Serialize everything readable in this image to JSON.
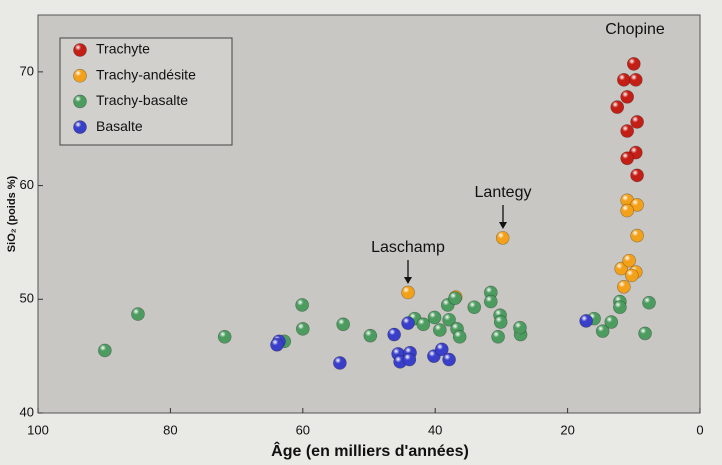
{
  "chart_data": {
    "type": "scatter",
    "x_label": "Âge (en milliers d'années)",
    "y_label": "SiO₂ (poids %)",
    "xlim": [
      100,
      0
    ],
    "ylim": [
      40,
      75
    ],
    "xticks": [
      100,
      80,
      60,
      40,
      20,
      0
    ],
    "yticks": [
      40,
      50,
      60,
      70
    ],
    "legend": "top-left",
    "annotations": [
      "Chopine",
      "Lantegy",
      "Laschamp"
    ],
    "series": [
      {
        "name": "Trachyte",
        "color": "#c41f16",
        "x": [
          10.0,
          11.5,
          9.7,
          11.0,
          12.5,
          9.5,
          11.0,
          9.7,
          11.0,
          9.5
        ],
        "values": [
          70.7,
          69.3,
          69.3,
          67.8,
          66.9,
          65.6,
          64.8,
          62.9,
          62.4,
          60.9
        ]
      },
      {
        "name": "Trachy-andésite",
        "color": "#f4a11a",
        "x": [
          44.1,
          36.9,
          29.8,
          11.0,
          9.5,
          11.0,
          9.5,
          11.9,
          10.7,
          9.7,
          10.3,
          11.5
        ],
        "values": [
          50.6,
          50.2,
          55.4,
          58.7,
          58.3,
          57.8,
          55.6,
          52.7,
          53.4,
          52.4,
          52.1,
          51.1
        ]
      },
      {
        "name": "Trachy-basalte",
        "color": "#4c9c60",
        "x": [
          89.9,
          84.9,
          71.8,
          62.8,
          60.1,
          60.0,
          53.9,
          49.8,
          43.1,
          41.8,
          40.1,
          39.3,
          38.1,
          37.9,
          37.0,
          36.7,
          36.3,
          34.1,
          31.6,
          31.6,
          30.2,
          30.1,
          30.5,
          27.1,
          27.2,
          16.0,
          14.7,
          13.4,
          12.1,
          12.1,
          8.3,
          7.7
        ],
        "values": [
          45.5,
          48.7,
          46.7,
          46.3,
          49.5,
          47.4,
          47.8,
          46.8,
          48.3,
          47.8,
          48.4,
          47.3,
          49.5,
          48.2,
          50.1,
          47.4,
          46.7,
          49.3,
          50.6,
          49.8,
          48.6,
          48.0,
          46.7,
          46.9,
          47.5,
          48.3,
          47.2,
          48.0,
          49.8,
          49.3,
          47.0,
          49.7
        ]
      },
      {
        "name": "Basalte",
        "color": "#3a3fca",
        "x": [
          63.6,
          63.9,
          54.4,
          46.2,
          44.1,
          45.6,
          43.8,
          45.3,
          43.9,
          40.2,
          39.0,
          37.9,
          17.2
        ],
        "values": [
          46.3,
          46.0,
          44.4,
          46.9,
          47.9,
          45.2,
          45.3,
          44.5,
          44.7,
          45.0,
          45.6,
          44.7,
          48.1
        ]
      }
    ]
  }
}
